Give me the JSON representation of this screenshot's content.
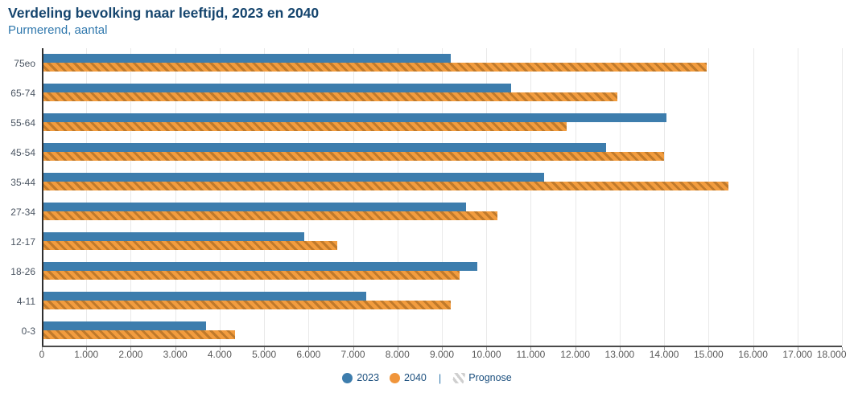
{
  "header": {
    "title": "Verdeling bevolking naar leeftijd, 2023 en 2040",
    "subtitle": "Purmerend, aantal"
  },
  "chart_data": {
    "type": "bar",
    "orientation": "horizontal",
    "title": "Verdeling bevolking naar leeftijd, 2023 en 2040",
    "subtitle": "Purmerend, aantal",
    "categories": [
      "75eo",
      "65-74",
      "55-64",
      "45-54",
      "35-44",
      "27-34",
      "12-17",
      "18-26",
      "4-11",
      "0-3"
    ],
    "series": [
      {
        "name": "2023",
        "color": "#3D7DAD",
        "style": "solid",
        "values": [
          9200,
          10550,
          14050,
          12700,
          11300,
          9550,
          5900,
          9800,
          7300,
          3700
        ]
      },
      {
        "name": "2040",
        "color": "#F0953B",
        "style": "hatched",
        "note": "Prognose",
        "values": [
          14950,
          12950,
          11800,
          14000,
          15450,
          10250,
          6650,
          9400,
          9200,
          4350
        ]
      }
    ],
    "xlim": [
      0,
      18000
    ],
    "x_ticks": [
      0,
      1000,
      2000,
      3000,
      4000,
      5000,
      6000,
      7000,
      8000,
      9000,
      10000,
      11000,
      12000,
      13000,
      14000,
      15000,
      16000,
      17000,
      18000
    ],
    "x_tick_labels": [
      "0",
      "1.000",
      "2.000",
      "3.000",
      "4.000",
      "5.000",
      "6.000",
      "7.000",
      "8.000",
      "9.000",
      "10.000",
      "11.000",
      "12.000",
      "13.000",
      "14.000",
      "15.000",
      "16.000",
      "17.000",
      "18.000"
    ],
    "grid": "vertical",
    "legend_position": "bottom"
  },
  "legend": {
    "item_2023": "2023",
    "item_2040": "2040",
    "separator": "|",
    "item_prognose": "Prognose"
  },
  "colors": {
    "title": "#15456E",
    "subtitle": "#3078AD",
    "bar_2023": "#3D7DAD",
    "bar_2040": "#F0953B",
    "bar_2040_hatch": "#C07A2B",
    "gridline": "#e9e9e9",
    "axis": "#4a4a4a"
  }
}
